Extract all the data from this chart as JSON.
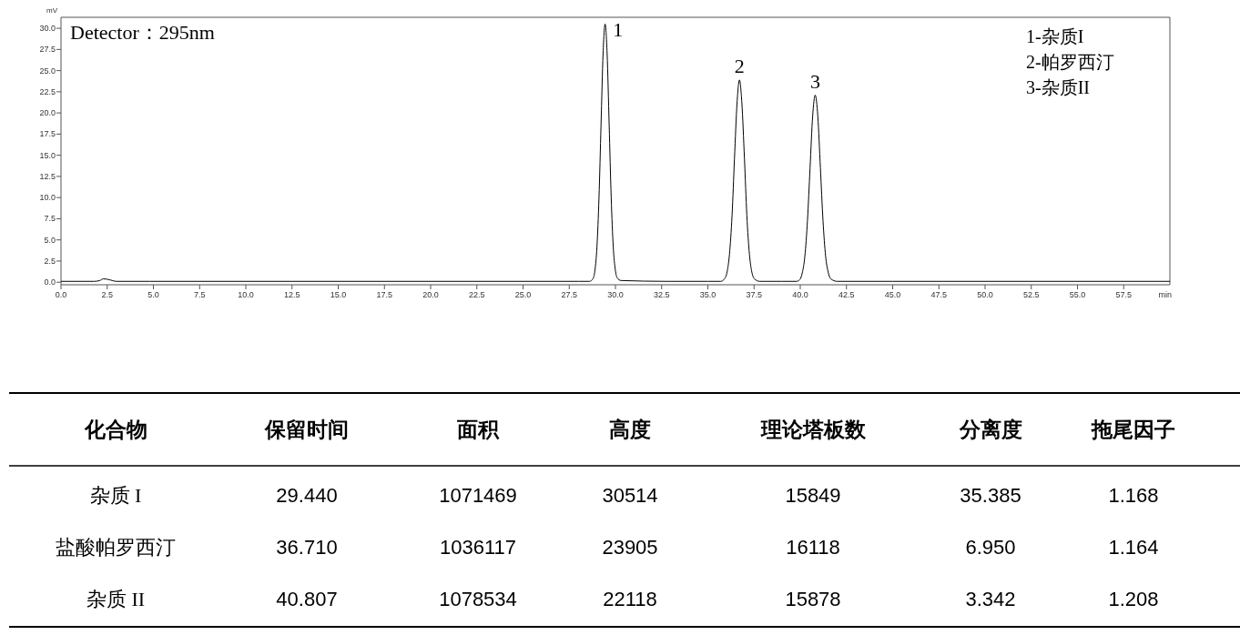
{
  "chart_data": [
    {
      "type": "line",
      "xlabel": "min",
      "ylabel": "mV",
      "xlim": [
        0,
        60
      ],
      "ylim": [
        -0.3,
        31.3
      ],
      "xticks": [
        {
          "value": 0,
          "label": "0.0"
        },
        {
          "value": 2.5,
          "label": "2.5"
        },
        {
          "value": 5,
          "label": "5.0"
        },
        {
          "value": 7.5,
          "label": "7.5"
        },
        {
          "value": 10,
          "label": "10.0"
        },
        {
          "value": 12.5,
          "label": "12.5"
        },
        {
          "value": 15,
          "label": "15.0"
        },
        {
          "value": 17.5,
          "label": "17.5"
        },
        {
          "value": 20,
          "label": "20.0"
        },
        {
          "value": 22.5,
          "label": "22.5"
        },
        {
          "value": 25,
          "label": "25.0"
        },
        {
          "value": 27.5,
          "label": "27.5"
        },
        {
          "value": 30,
          "label": "30.0"
        },
        {
          "value": 32.5,
          "label": "32.5"
        },
        {
          "value": 35,
          "label": "35.0"
        },
        {
          "value": 37.5,
          "label": "37.5"
        },
        {
          "value": 40,
          "label": "40.0"
        },
        {
          "value": 42.5,
          "label": "42.5"
        },
        {
          "value": 45,
          "label": "45.0"
        },
        {
          "value": 47.5,
          "label": "47.5"
        },
        {
          "value": 50,
          "label": "50.0"
        },
        {
          "value": 52.5,
          "label": "52.5"
        },
        {
          "value": 55,
          "label": "55.0"
        },
        {
          "value": 57.5,
          "label": "57.5"
        }
      ],
      "yticks": [
        {
          "value": 0,
          "label": "0.0"
        },
        {
          "value": 2.5,
          "label": "2.5"
        },
        {
          "value": 5,
          "label": "5.0"
        },
        {
          "value": 7.5,
          "label": "7.5"
        },
        {
          "value": 10,
          "label": "10.0"
        },
        {
          "value": 12.5,
          "label": "12.5"
        },
        {
          "value": 15,
          "label": "15.0"
        },
        {
          "value": 17.5,
          "label": "17.5"
        },
        {
          "value": 20,
          "label": "20.0"
        },
        {
          "value": 22.5,
          "label": "22.5"
        },
        {
          "value": 25,
          "label": "25.0"
        },
        {
          "value": 27.5,
          "label": "27.5"
        },
        {
          "value": 30,
          "label": "30.0"
        }
      ],
      "grid": false,
      "marker": "none",
      "line_style": "solid",
      "series": [
        {
          "color": "#000000",
          "x": [
            0,
            1.8,
            2.1,
            2.3,
            2.6,
            3.0,
            4.8,
            10,
            20,
            28,
            28.6,
            28.78,
            28.89,
            29.0,
            29.11,
            29.22,
            29.33,
            29.44,
            29.55,
            29.66,
            29.77,
            29.88,
            29.99,
            30.1,
            30.3,
            32.8,
            35,
            35.7,
            35.9,
            36.04,
            36.17,
            36.31,
            36.44,
            36.58,
            36.71,
            36.84,
            36.98,
            37.11,
            37.25,
            37.38,
            37.52,
            37.8,
            39,
            39.8,
            39.97,
            40.11,
            40.25,
            40.39,
            40.53,
            40.67,
            40.807,
            40.95,
            41.09,
            41.23,
            41.37,
            41.51,
            41.65,
            42.0,
            45,
            50,
            60
          ],
          "values": [
            0.1,
            0.1,
            0.2,
            0.4,
            0.3,
            0.1,
            0.1,
            0.1,
            0.1,
            0.1,
            0.1,
            0.4,
            1.4,
            4.2,
            10.0,
            18.6,
            27.0,
            30.5,
            27.0,
            18.6,
            10.0,
            4.2,
            1.5,
            0.5,
            0.2,
            0.1,
            0.1,
            0.1,
            0.4,
            1.2,
            3.3,
            7.9,
            14.6,
            21.2,
            23.9,
            21.2,
            14.6,
            7.9,
            3.3,
            1.2,
            0.4,
            0.1,
            0.1,
            0.1,
            0.3,
            1.1,
            3.1,
            7.3,
            13.5,
            19.6,
            22.1,
            19.6,
            13.5,
            7.3,
            3.1,
            1.2,
            0.4,
            0.1,
            0.1,
            0.1,
            0.1
          ]
        }
      ],
      "annotations": [
        "Detector：295nm",
        {
          "text": "1",
          "x": 29.44,
          "y": 30.5
        },
        {
          "text": "2",
          "x": 36.71,
          "y": 23.9
        },
        {
          "text": "3",
          "x": 40.807,
          "y": 22.1
        },
        "1-杂质I",
        "2-帕罗西汀",
        "3-杂质II"
      ]
    },
    {
      "type": "other",
      "categories": [
        "化合物",
        "保留时间",
        "面积",
        "高度",
        "理论塔板数",
        "分离度",
        "拖尾因子"
      ],
      "annotations": [
        "杂质 I",
        "29.440",
        "1071469",
        "30514",
        "15849",
        "35.385",
        "1.168",
        "盐酸帕罗西汀",
        "36.710",
        "1036117",
        "23905",
        "16118",
        "6.950",
        "1.164",
        "杂质 II",
        "40.807",
        "1078534",
        "22118",
        "15878",
        "3.342",
        "1.208"
      ]
    }
  ]
}
